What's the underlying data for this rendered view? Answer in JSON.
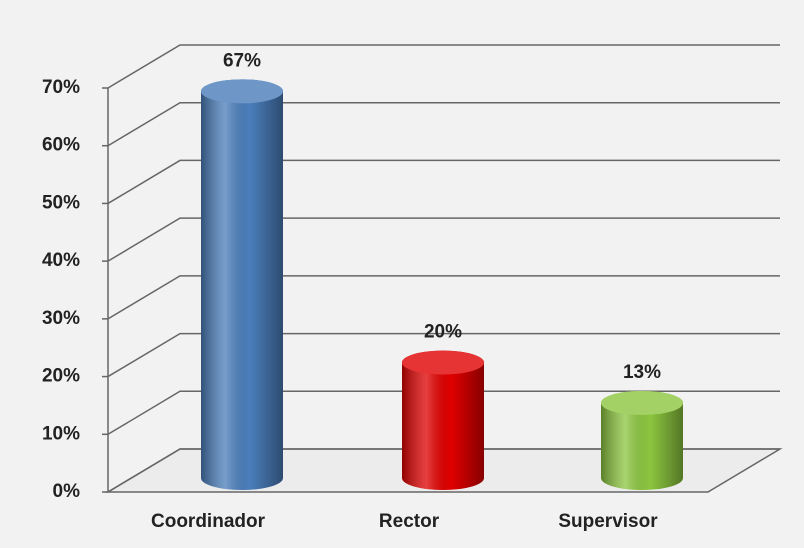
{
  "chart_data": {
    "type": "bar",
    "categories": [
      "Coordinador",
      "Rector",
      "Supervisor"
    ],
    "series": [
      {
        "name": null,
        "values": [
          67,
          20,
          13
        ],
        "value_labels": [
          "67%",
          "20%",
          "13%"
        ],
        "colors": [
          "#4a7ebb",
          "#e00000",
          "#8cc63f"
        ]
      }
    ],
    "ylim": [
      0,
      70
    ],
    "yticks": [
      {
        "value": 0,
        "label": "0%"
      },
      {
        "value": 10,
        "label": "10%"
      },
      {
        "value": 20,
        "label": "20%"
      },
      {
        "value": 30,
        "label": "30%"
      },
      {
        "value": 40,
        "label": "40%"
      },
      {
        "value": 50,
        "label": "50%"
      },
      {
        "value": 60,
        "label": "60%"
      },
      {
        "value": 70,
        "label": "70%"
      }
    ],
    "grid": true
  }
}
